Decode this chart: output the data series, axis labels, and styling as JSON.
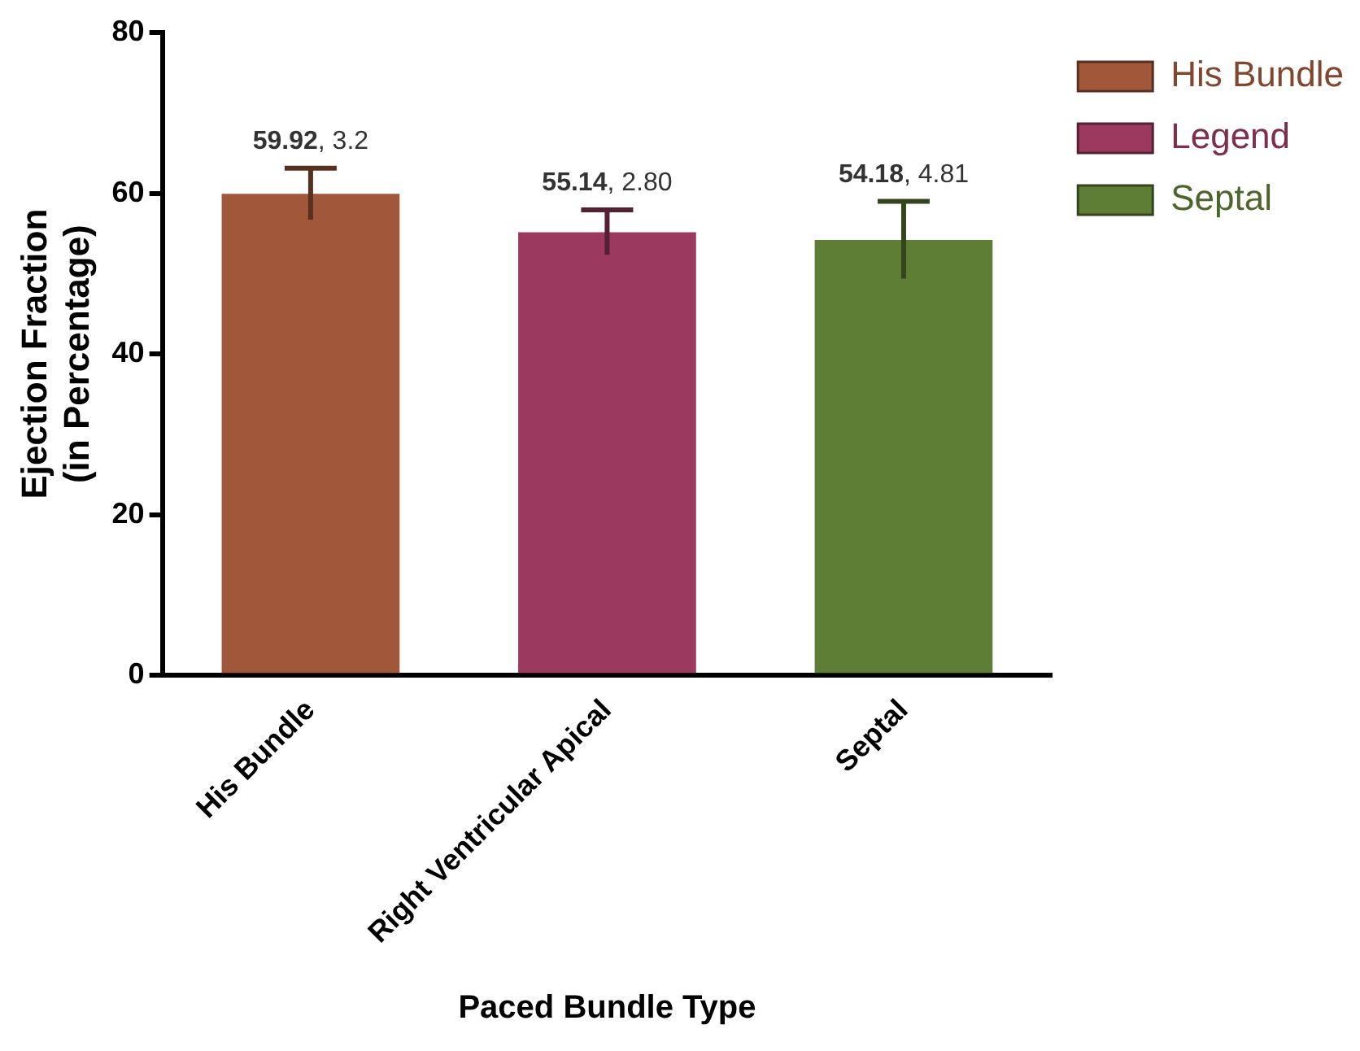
{
  "chart_data": {
    "type": "bar",
    "xlabel": "Paced Bundle Type",
    "ylabel": "Ejection Fraction\n(in Percentage)",
    "categories": [
      "His Bundle",
      "Right Ventricular Apical",
      "Septal"
    ],
    "series": [
      {
        "name": "His Bundle",
        "color": "#a0573a",
        "values": [
          59.92,
          null,
          null
        ],
        "errors": [
          3.2,
          null,
          null
        ],
        "value_labels": [
          "59.92, 3.2",
          null,
          null
        ]
      },
      {
        "name": "Legend",
        "color": "#9b3a5e",
        "values": [
          null,
          55.14,
          null
        ],
        "errors": [
          null,
          2.8,
          null
        ],
        "value_labels": [
          null,
          "55.14, 2.80",
          null
        ]
      },
      {
        "name": "Septal",
        "color": "#5e7e35",
        "values": [
          null,
          null,
          54.18
        ],
        "errors": [
          null,
          null,
          4.81
        ],
        "value_labels": [
          null,
          null,
          "54.18, 4.81"
        ]
      }
    ],
    "ylim": [
      0,
      80
    ],
    "yticks": [
      0,
      20,
      40,
      60,
      80
    ],
    "grid": false,
    "legend": "top right"
  }
}
